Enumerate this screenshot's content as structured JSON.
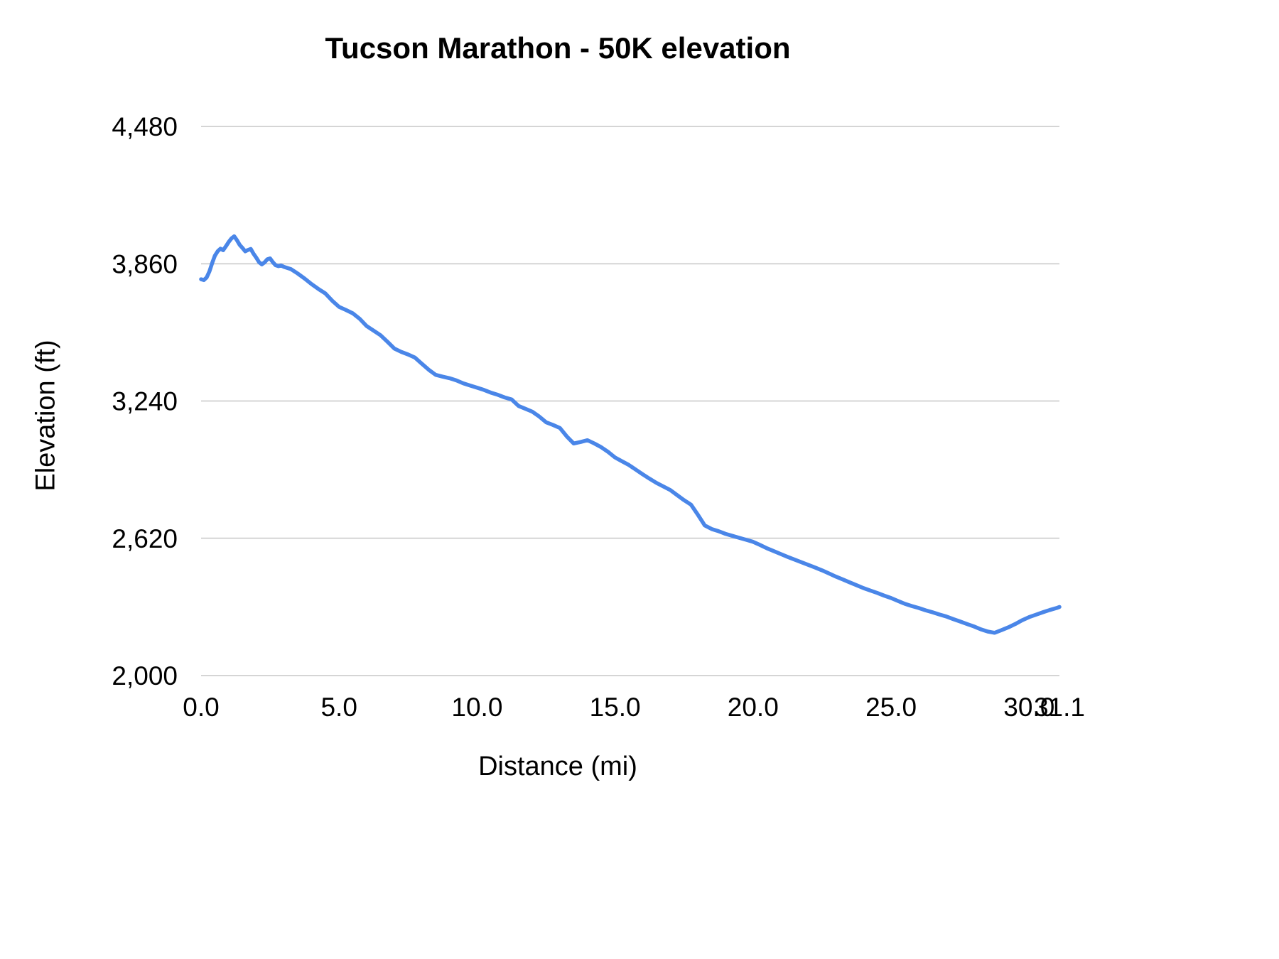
{
  "chart": {
    "title": "Tucson Marathon - 50K elevation",
    "xlabel": "Distance (mi)",
    "ylabel": "Elevation (ft)"
  },
  "chart_data": {
    "type": "line",
    "title": "Tucson Marathon - 50K elevation",
    "xlabel": "Distance (mi)",
    "ylabel": "Elevation (ft)",
    "xlim": [
      0,
      31.1
    ],
    "ylim": [
      2000,
      4480
    ],
    "x_ticks": [
      0,
      5,
      10,
      15,
      20,
      25,
      30,
      31.1
    ],
    "x_tick_labels": [
      "0.0",
      "5.0",
      "10.0",
      "15.0",
      "20.0",
      "25.0",
      "30.0",
      "31.1"
    ],
    "y_ticks": [
      2000,
      2620,
      3240,
      3860,
      4480
    ],
    "y_tick_labels": [
      "2,000",
      "2,620",
      "3,240",
      "3,860",
      "4,480"
    ],
    "grid": "horizontal",
    "legend": "none",
    "line_color": "#4a86e8",
    "line_width": 5.5,
    "series": [
      {
        "name": "Elevation",
        "points": [
          [
            0,
            3790
          ],
          [
            0.1,
            3786
          ],
          [
            0.2,
            3798
          ],
          [
            0.3,
            3825
          ],
          [
            0.4,
            3862
          ],
          [
            0.5,
            3896
          ],
          [
            0.6,
            3916
          ],
          [
            0.7,
            3928
          ],
          [
            0.8,
            3921
          ],
          [
            0.9,
            3939
          ],
          [
            1,
            3958
          ],
          [
            1.1,
            3974
          ],
          [
            1.2,
            3984
          ],
          [
            1.3,
            3966
          ],
          [
            1.4,
            3945
          ],
          [
            1.5,
            3931
          ],
          [
            1.6,
            3916
          ],
          [
            1.7,
            3922
          ],
          [
            1.8,
            3927
          ],
          [
            1.9,
            3905
          ],
          [
            2,
            3887
          ],
          [
            2.1,
            3867
          ],
          [
            2.2,
            3857
          ],
          [
            2.3,
            3866
          ],
          [
            2.4,
            3880
          ],
          [
            2.5,
            3884
          ],
          [
            2.6,
            3867
          ],
          [
            2.7,
            3853
          ],
          [
            2.8,
            3849
          ],
          [
            2.9,
            3852
          ],
          [
            3,
            3846
          ],
          [
            3.25,
            3836
          ],
          [
            3.5,
            3816
          ],
          [
            3.75,
            3793
          ],
          [
            4,
            3768
          ],
          [
            4.25,
            3746
          ],
          [
            4.5,
            3726
          ],
          [
            4.75,
            3693
          ],
          [
            5,
            3665
          ],
          [
            5.25,
            3651
          ],
          [
            5.5,
            3636
          ],
          [
            5.75,
            3611
          ],
          [
            6,
            3578
          ],
          [
            6.25,
            3558
          ],
          [
            6.5,
            3537
          ],
          [
            6.75,
            3508
          ],
          [
            7,
            3477
          ],
          [
            7.25,
            3462
          ],
          [
            7.5,
            3450
          ],
          [
            7.75,
            3436
          ],
          [
            8,
            3408
          ],
          [
            8.25,
            3381
          ],
          [
            8.5,
            3358
          ],
          [
            8.75,
            3350
          ],
          [
            9,
            3343
          ],
          [
            9.25,
            3333
          ],
          [
            9.5,
            3320
          ],
          [
            9.75,
            3310
          ],
          [
            10,
            3300
          ],
          [
            10.25,
            3290
          ],
          [
            10.5,
            3278
          ],
          [
            10.75,
            3268
          ],
          [
            11,
            3256
          ],
          [
            11.25,
            3247
          ],
          [
            11.5,
            3218
          ],
          [
            11.75,
            3205
          ],
          [
            12,
            3192
          ],
          [
            12.25,
            3170
          ],
          [
            12.5,
            3144
          ],
          [
            12.75,
            3132
          ],
          [
            13,
            3118
          ],
          [
            13.25,
            3080
          ],
          [
            13.5,
            3048
          ],
          [
            13.75,
            3055
          ],
          [
            14,
            3063
          ],
          [
            14.25,
            3048
          ],
          [
            14.5,
            3031
          ],
          [
            14.75,
            3010
          ],
          [
            15,
            2985
          ],
          [
            15.25,
            2968
          ],
          [
            15.5,
            2951
          ],
          [
            15.75,
            2930
          ],
          [
            16,
            2909
          ],
          [
            16.25,
            2889
          ],
          [
            16.5,
            2870
          ],
          [
            16.75,
            2854
          ],
          [
            17,
            2838
          ],
          [
            17.25,
            2815
          ],
          [
            17.5,
            2792
          ],
          [
            17.75,
            2772
          ],
          [
            18,
            2726
          ],
          [
            18.25,
            2678
          ],
          [
            18.5,
            2662
          ],
          [
            18.75,
            2652
          ],
          [
            19,
            2640
          ],
          [
            19.25,
            2631
          ],
          [
            19.5,
            2622
          ],
          [
            19.75,
            2613
          ],
          [
            20,
            2604
          ],
          [
            20.25,
            2590
          ],
          [
            20.5,
            2575
          ],
          [
            20.75,
            2562
          ],
          [
            21,
            2549
          ],
          [
            21.25,
            2536
          ],
          [
            21.5,
            2524
          ],
          [
            21.75,
            2512
          ],
          [
            22,
            2500
          ],
          [
            22.25,
            2488
          ],
          [
            22.5,
            2475
          ],
          [
            22.75,
            2461
          ],
          [
            23,
            2447
          ],
          [
            23.25,
            2434
          ],
          [
            23.5,
            2421
          ],
          [
            23.75,
            2408
          ],
          [
            24,
            2395
          ],
          [
            24.25,
            2384
          ],
          [
            24.5,
            2373
          ],
          [
            24.75,
            2361
          ],
          [
            25,
            2350
          ],
          [
            25.25,
            2337
          ],
          [
            25.5,
            2324
          ],
          [
            25.75,
            2314
          ],
          [
            26,
            2305
          ],
          [
            26.25,
            2295
          ],
          [
            26.5,
            2286
          ],
          [
            26.75,
            2276
          ],
          [
            27,
            2267
          ],
          [
            27.25,
            2255
          ],
          [
            27.5,
            2244
          ],
          [
            27.75,
            2233
          ],
          [
            28,
            2222
          ],
          [
            28.25,
            2209
          ],
          [
            28.5,
            2199
          ],
          [
            28.75,
            2193
          ],
          [
            29,
            2205
          ],
          [
            29.25,
            2218
          ],
          [
            29.5,
            2233
          ],
          [
            29.75,
            2250
          ],
          [
            30,
            2264
          ],
          [
            30.25,
            2275
          ],
          [
            30.5,
            2286
          ],
          [
            30.75,
            2296
          ],
          [
            31,
            2305
          ],
          [
            31.1,
            2310
          ]
        ]
      }
    ]
  }
}
